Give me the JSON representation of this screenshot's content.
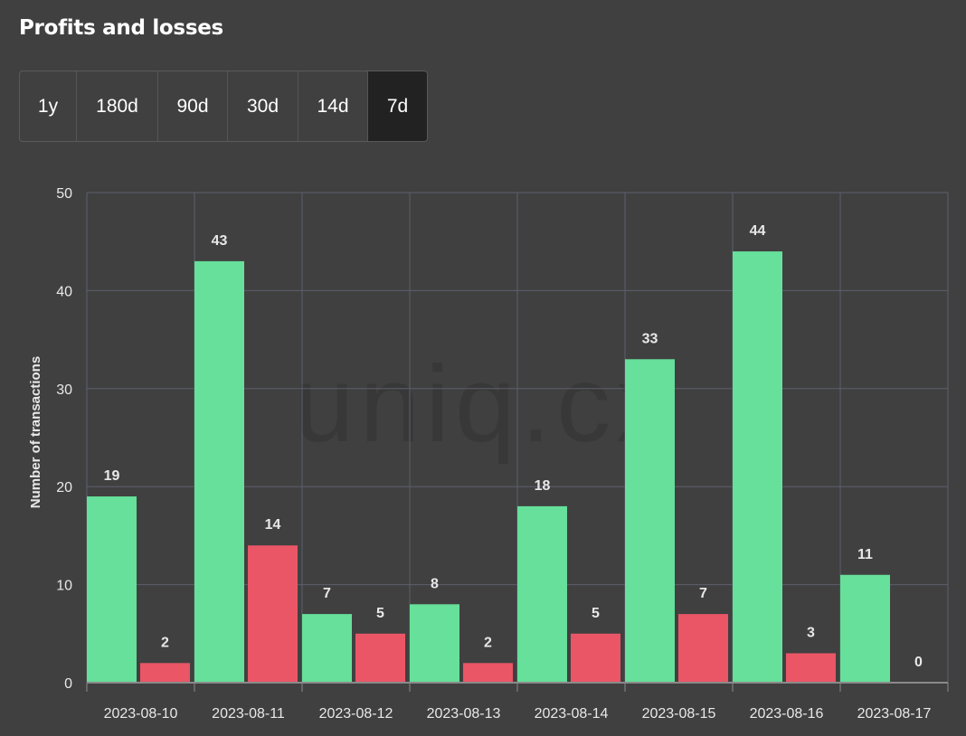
{
  "header": {
    "title": "Profits and losses"
  },
  "range_selector": {
    "options": [
      "1y",
      "180d",
      "90d",
      "30d",
      "14d",
      "7d"
    ],
    "selected": "7d"
  },
  "watermark": "uniq.cx",
  "colors": {
    "profit": "#66e09a",
    "loss": "#ea5666",
    "background": "#404040",
    "grid": "#5c5f6e",
    "text": "#e8e8e8"
  },
  "chart_data": {
    "type": "bar",
    "title": "",
    "xlabel": "",
    "ylabel": "Number of transactions",
    "ylim": [
      0,
      50
    ],
    "yticks": [
      0,
      10,
      20,
      30,
      40,
      50
    ],
    "grid": true,
    "categories": [
      "2023-08-10",
      "2023-08-11",
      "2023-08-12",
      "2023-08-13",
      "2023-08-14",
      "2023-08-15",
      "2023-08-16",
      "2023-08-17"
    ],
    "series": [
      {
        "color": "#66e09a",
        "values": [
          19,
          43,
          7,
          8,
          18,
          33,
          44,
          11
        ]
      },
      {
        "color": "#ea5666",
        "values": [
          2,
          14,
          5,
          2,
          5,
          7,
          3,
          0
        ]
      }
    ]
  }
}
